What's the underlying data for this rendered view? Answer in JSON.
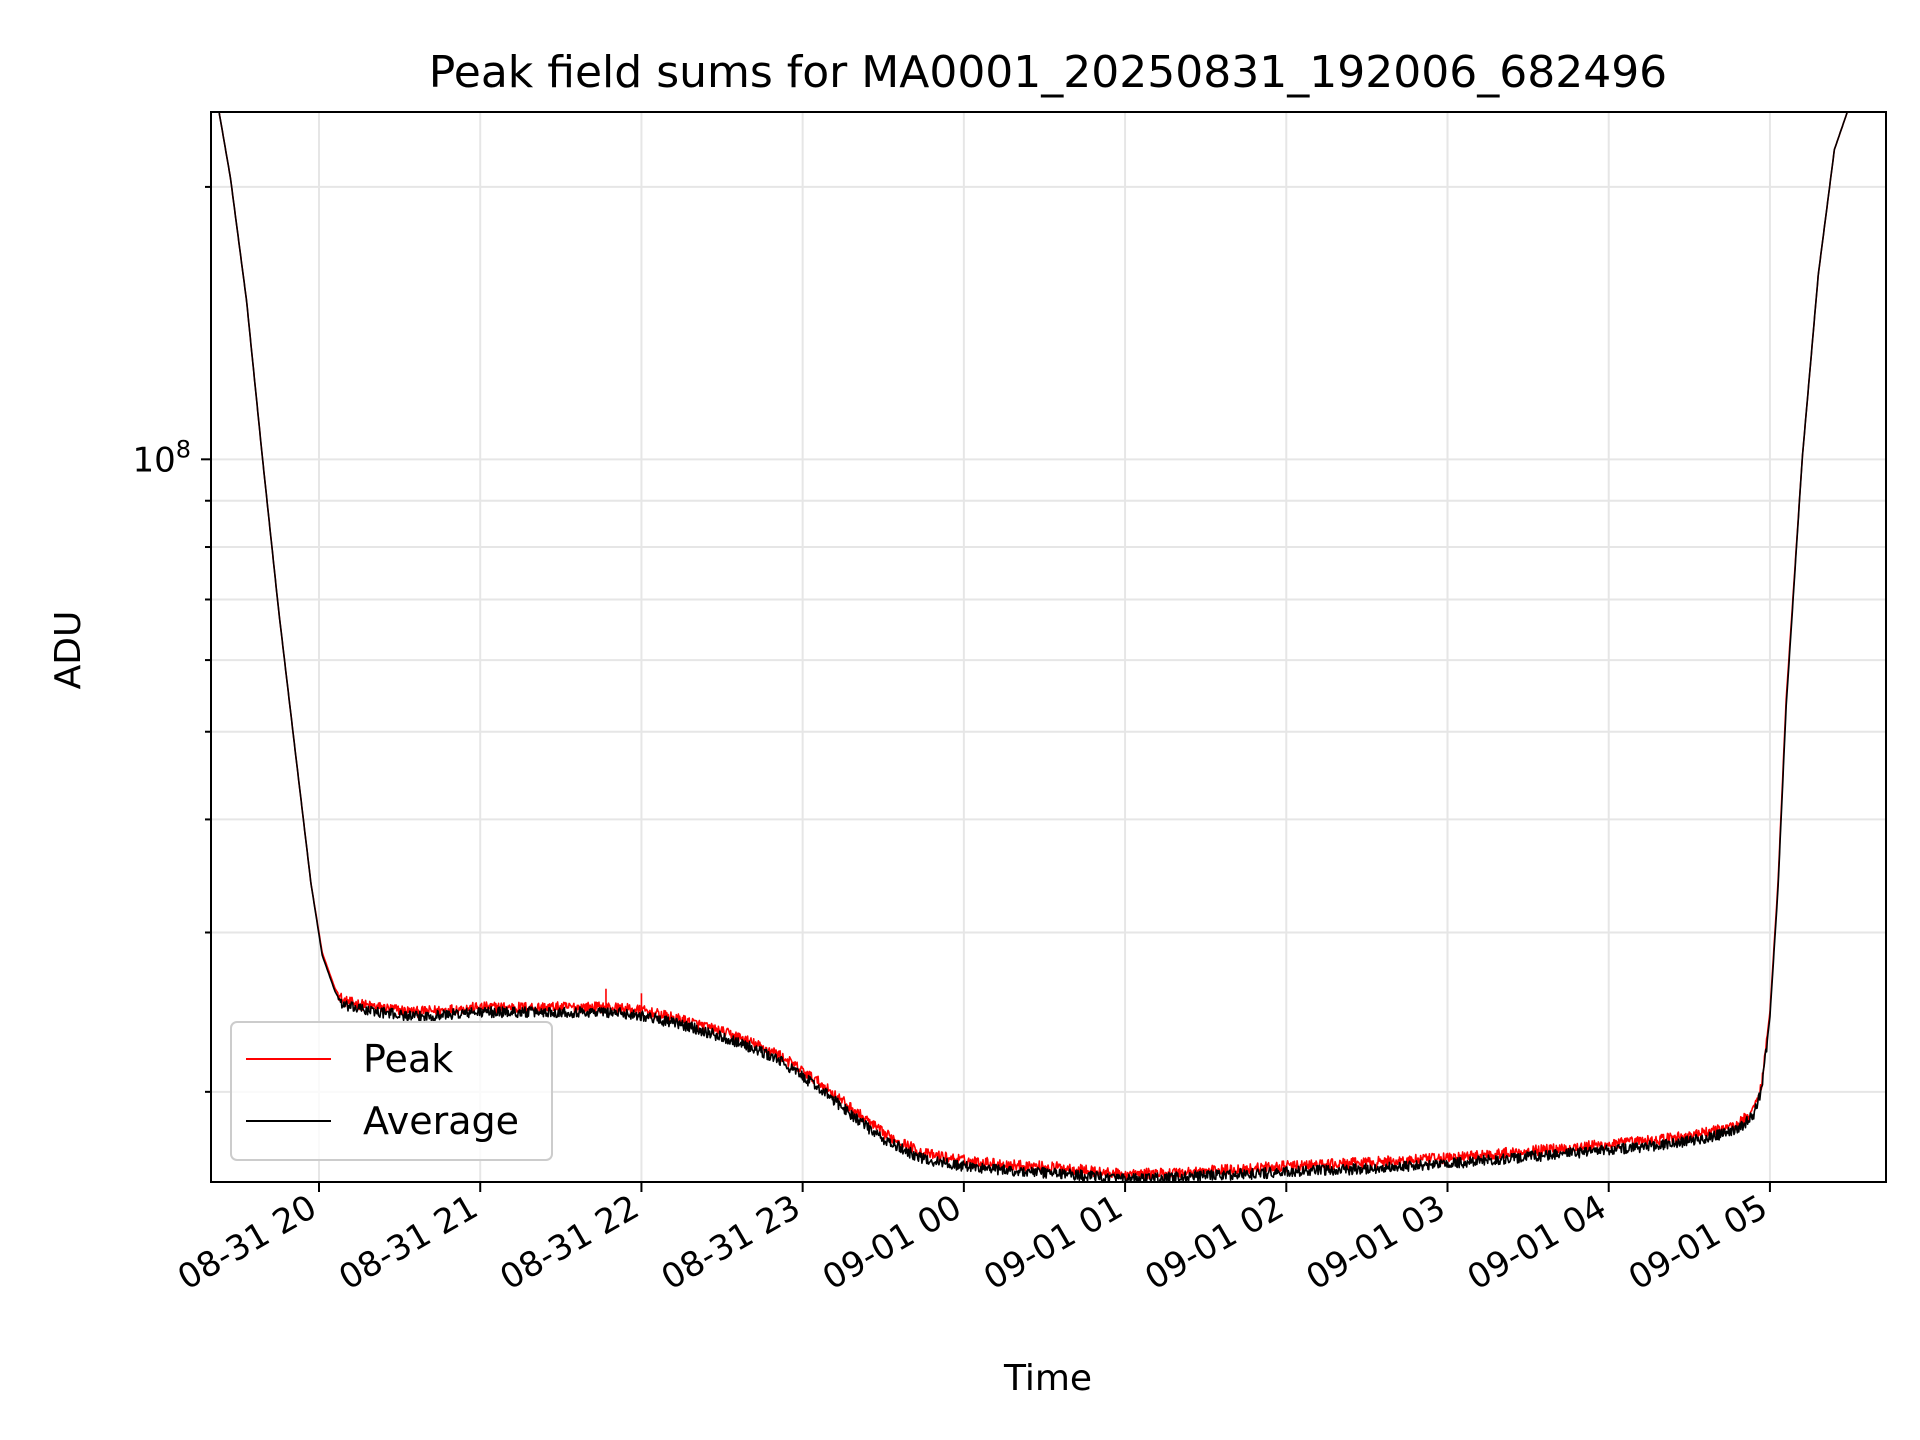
{
  "chart_data": {
    "type": "line",
    "title": "Peak field sums for MA0001_20250831_192006_682496",
    "xlabel": "Time",
    "ylabel": "ADU",
    "yscale": "log",
    "grid": true,
    "legend_position": "lower-left",
    "x_unit": "hours since 08-31 20:00",
    "x_range": [
      -0.67,
      9.72
    ],
    "y_range": [
      15900000,
      242000000
    ],
    "x_ticks": [
      {
        "x": 0,
        "label": "08-31 20"
      },
      {
        "x": 1,
        "label": "08-31 21"
      },
      {
        "x": 2,
        "label": "08-31 22"
      },
      {
        "x": 3,
        "label": "08-31 23"
      },
      {
        "x": 4,
        "label": "09-01 00"
      },
      {
        "x": 5,
        "label": "09-01 01"
      },
      {
        "x": 6,
        "label": "09-01 02"
      },
      {
        "x": 7,
        "label": "09-01 03"
      },
      {
        "x": 8,
        "label": "09-01 04"
      },
      {
        "x": 9,
        "label": "09-01 05"
      }
    ],
    "y_major_tick": {
      "value": 100000000,
      "base": "10",
      "exp": "8"
    },
    "series": [
      {
        "name": "Peak",
        "color": "#ff0000",
        "x": [
          -0.62,
          -0.55,
          -0.45,
          -0.35,
          -0.25,
          -0.15,
          -0.05,
          0.02,
          0.1,
          0.15,
          0.3,
          0.6,
          1.0,
          1.5,
          1.8,
          2.0,
          2.3,
          2.6,
          2.85,
          3.1,
          3.3,
          3.5,
          3.75,
          4.0,
          4.3,
          4.6,
          4.85,
          5.0,
          5.2,
          5.5,
          6.0,
          6.5,
          7.0,
          7.5,
          8.0,
          8.3,
          8.6,
          8.8,
          8.9,
          8.95,
          9.0,
          9.05,
          9.1,
          9.2,
          9.3,
          9.4,
          9.48
        ],
        "values": [
          242000000,
          205000000,
          150000000,
          100000000,
          68000000,
          48000000,
          34000000,
          28500000,
          26000000,
          25200000,
          24900000,
          24500000,
          24800000,
          24800000,
          24800000,
          24600000,
          23900000,
          23000000,
          22000000,
          20500000,
          19200000,
          18000000,
          17100000,
          16800000,
          16600000,
          16500000,
          16300000,
          16200000,
          16250000,
          16350000,
          16550000,
          16700000,
          16900000,
          17200000,
          17500000,
          17700000,
          18000000,
          18400000,
          19100000,
          20500000,
          24500000,
          34000000,
          54000000,
          100000000,
          160000000,
          220000000,
          242000000
        ],
        "spikes": [
          {
            "x": 1.78,
            "value": 26000000
          },
          {
            "x": 2.0,
            "value": 25700000
          }
        ]
      },
      {
        "name": "Average",
        "color": "#000000",
        "x": [
          -0.62,
          -0.55,
          -0.45,
          -0.35,
          -0.25,
          -0.15,
          -0.05,
          0.02,
          0.1,
          0.15,
          0.3,
          0.6,
          1.0,
          1.5,
          1.8,
          2.0,
          2.3,
          2.6,
          2.85,
          3.1,
          3.3,
          3.5,
          3.75,
          4.0,
          4.3,
          4.6,
          4.85,
          5.0,
          5.2,
          5.5,
          6.0,
          6.5,
          7.0,
          7.5,
          8.0,
          8.3,
          8.6,
          8.8,
          8.9,
          8.95,
          9.0,
          9.05,
          9.1,
          9.2,
          9.3,
          9.4,
          9.48
        ],
        "values": [
          242000000,
          205000000,
          150000000,
          100000000,
          68000000,
          48000000,
          34000000,
          28300000,
          25800000,
          24900000,
          24600000,
          24200000,
          24500000,
          24500000,
          24500000,
          24300000,
          23600000,
          22700000,
          21700000,
          20200000,
          18900000,
          17700000,
          16850000,
          16550000,
          16350000,
          16250000,
          16100000,
          16000000,
          16050000,
          16150000,
          16300000,
          16450000,
          16650000,
          16950000,
          17250000,
          17450000,
          17750000,
          18150000,
          18850000,
          20200000,
          24200000,
          33500000,
          53000000,
          100000000,
          160000000,
          220000000,
          242000000
        ]
      }
    ]
  }
}
